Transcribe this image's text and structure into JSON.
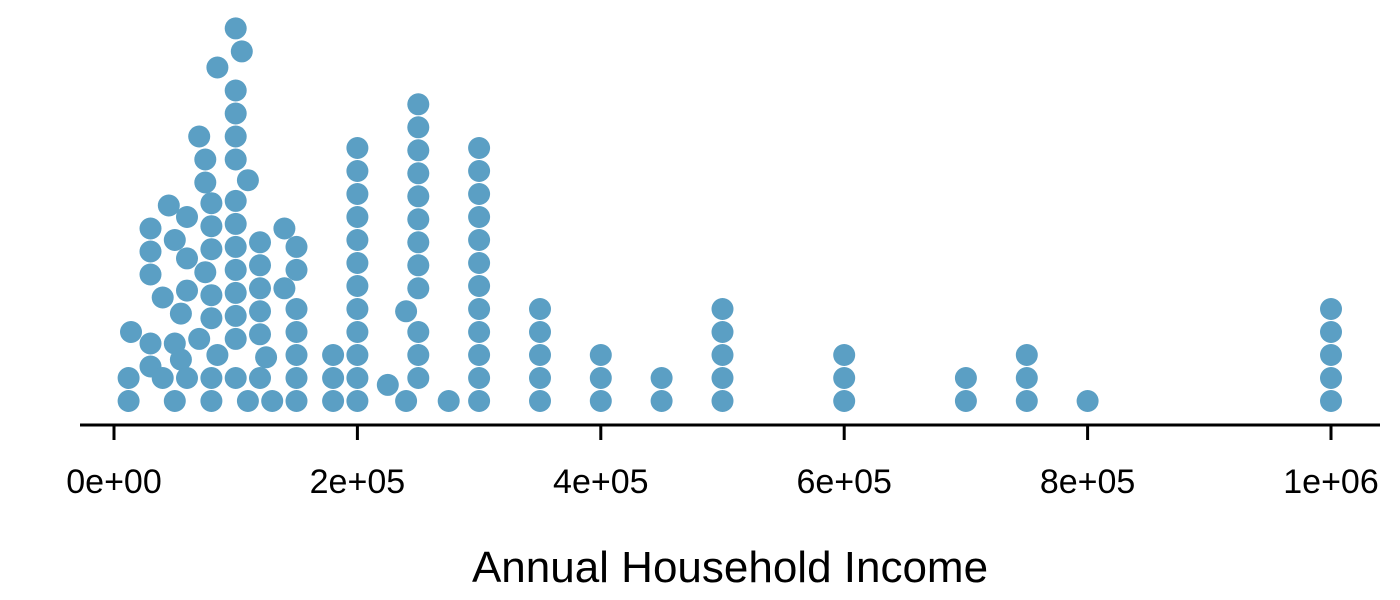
{
  "chart_data": {
    "type": "dotplot",
    "title": "",
    "xlabel": "Annual Household Income",
    "ylabel": "",
    "xlim": [
      -10000,
      1040000
    ],
    "ticks": [
      {
        "value": 0,
        "label": "0e+00"
      },
      {
        "value": 200000,
        "label": "2e+05"
      },
      {
        "value": 400000,
        "label": "4e+05"
      },
      {
        "value": 600000,
        "label": "6e+05"
      },
      {
        "value": 800000,
        "label": "8e+05"
      },
      {
        "value": 1000000,
        "label": "1e+06"
      }
    ],
    "grid": false,
    "legend": "none",
    "color": "#5b9fc4",
    "points": [
      {
        "x": 12000,
        "level": 0
      },
      {
        "x": 12000,
        "level": 1
      },
      {
        "x": 14000,
        "level": 3
      },
      {
        "x": 30000,
        "level": 1.5
      },
      {
        "x": 30000,
        "level": 2.5
      },
      {
        "x": 30000,
        "level": 5.5
      },
      {
        "x": 30000,
        "level": 6.5
      },
      {
        "x": 30000,
        "level": 7.5
      },
      {
        "x": 40000,
        "level": 1
      },
      {
        "x": 40000,
        "level": 4.5
      },
      {
        "x": 45000,
        "level": 8.5
      },
      {
        "x": 50000,
        "level": 0
      },
      {
        "x": 50000,
        "level": 2.5
      },
      {
        "x": 50000,
        "level": 7
      },
      {
        "x": 55000,
        "level": 1.8
      },
      {
        "x": 55000,
        "level": 3.8
      },
      {
        "x": 60000,
        "level": 1
      },
      {
        "x": 60000,
        "level": 4.8
      },
      {
        "x": 60000,
        "level": 6.2
      },
      {
        "x": 60000,
        "level": 8
      },
      {
        "x": 70000,
        "level": 2.7
      },
      {
        "x": 70000,
        "level": 11.5
      },
      {
        "x": 75000,
        "level": 5.6
      },
      {
        "x": 75000,
        "level": 9.5
      },
      {
        "x": 75000,
        "level": 10.5
      },
      {
        "x": 80000,
        "level": 0
      },
      {
        "x": 80000,
        "level": 1
      },
      {
        "x": 80000,
        "level": 3.6
      },
      {
        "x": 80000,
        "level": 4.6
      },
      {
        "x": 80000,
        "level": 6.6
      },
      {
        "x": 80000,
        "level": 7.6
      },
      {
        "x": 80000,
        "level": 8.6
      },
      {
        "x": 85000,
        "level": 2
      },
      {
        "x": 85000,
        "level": 14.5
      },
      {
        "x": 100000,
        "level": 1
      },
      {
        "x": 100000,
        "level": 2.7
      },
      {
        "x": 100000,
        "level": 3.7
      },
      {
        "x": 100000,
        "level": 4.7
      },
      {
        "x": 100000,
        "level": 5.7
      },
      {
        "x": 100000,
        "level": 6.7
      },
      {
        "x": 100000,
        "level": 7.7
      },
      {
        "x": 100000,
        "level": 8.7
      },
      {
        "x": 100000,
        "level": 10.5
      },
      {
        "x": 100000,
        "level": 11.5
      },
      {
        "x": 100000,
        "level": 12.5
      },
      {
        "x": 100000,
        "level": 13.5
      },
      {
        "x": 100000,
        "level": 16.2
      },
      {
        "x": 105000,
        "level": 15.2
      },
      {
        "x": 110000,
        "level": 0
      },
      {
        "x": 110000,
        "level": 9.6
      },
      {
        "x": 120000,
        "level": 1
      },
      {
        "x": 120000,
        "level": 2.9
      },
      {
        "x": 120000,
        "level": 3.9
      },
      {
        "x": 120000,
        "level": 4.9
      },
      {
        "x": 120000,
        "level": 5.9
      },
      {
        "x": 120000,
        "level": 6.9
      },
      {
        "x": 125000,
        "level": 1.9
      },
      {
        "x": 130000,
        "level": 0
      },
      {
        "x": 140000,
        "level": 4.9
      },
      {
        "x": 140000,
        "level": 7.5
      },
      {
        "x": 150000,
        "level": 0
      },
      {
        "x": 150000,
        "level": 1
      },
      {
        "x": 150000,
        "level": 2
      },
      {
        "x": 150000,
        "level": 3
      },
      {
        "x": 150000,
        "level": 4
      },
      {
        "x": 150000,
        "level": 5.7
      },
      {
        "x": 150000,
        "level": 6.7
      },
      {
        "x": 180000,
        "level": 0
      },
      {
        "x": 180000,
        "level": 1
      },
      {
        "x": 180000,
        "level": 2
      },
      {
        "x": 200000,
        "level": 0
      },
      {
        "x": 200000,
        "level": 1
      },
      {
        "x": 200000,
        "level": 2
      },
      {
        "x": 200000,
        "level": 3
      },
      {
        "x": 200000,
        "level": 4
      },
      {
        "x": 200000,
        "level": 5
      },
      {
        "x": 200000,
        "level": 6
      },
      {
        "x": 200000,
        "level": 7
      },
      {
        "x": 200000,
        "level": 8
      },
      {
        "x": 200000,
        "level": 9
      },
      {
        "x": 200000,
        "level": 10
      },
      {
        "x": 200000,
        "level": 11
      },
      {
        "x": 225000,
        "level": 0.7
      },
      {
        "x": 240000,
        "level": 0
      },
      {
        "x": 240000,
        "level": 3.9
      },
      {
        "x": 250000,
        "level": 1
      },
      {
        "x": 250000,
        "level": 2
      },
      {
        "x": 250000,
        "level": 3
      },
      {
        "x": 250000,
        "level": 4.9
      },
      {
        "x": 250000,
        "level": 5.9
      },
      {
        "x": 250000,
        "level": 6.9
      },
      {
        "x": 250000,
        "level": 7.9
      },
      {
        "x": 250000,
        "level": 8.9
      },
      {
        "x": 250000,
        "level": 9.9
      },
      {
        "x": 250000,
        "level": 10.9
      },
      {
        "x": 250000,
        "level": 11.9
      },
      {
        "x": 250000,
        "level": 12.9
      },
      {
        "x": 275000,
        "level": 0
      },
      {
        "x": 300000,
        "level": 0
      },
      {
        "x": 300000,
        "level": 1
      },
      {
        "x": 300000,
        "level": 2
      },
      {
        "x": 300000,
        "level": 3
      },
      {
        "x": 300000,
        "level": 4
      },
      {
        "x": 300000,
        "level": 5
      },
      {
        "x": 300000,
        "level": 6
      },
      {
        "x": 300000,
        "level": 7
      },
      {
        "x": 300000,
        "level": 8
      },
      {
        "x": 300000,
        "level": 9
      },
      {
        "x": 300000,
        "level": 10
      },
      {
        "x": 300000,
        "level": 11
      },
      {
        "x": 350000,
        "level": 0
      },
      {
        "x": 350000,
        "level": 1
      },
      {
        "x": 350000,
        "level": 2
      },
      {
        "x": 350000,
        "level": 3
      },
      {
        "x": 350000,
        "level": 4
      },
      {
        "x": 400000,
        "level": 0
      },
      {
        "x": 400000,
        "level": 1
      },
      {
        "x": 400000,
        "level": 2
      },
      {
        "x": 450000,
        "level": 0
      },
      {
        "x": 450000,
        "level": 1
      },
      {
        "x": 500000,
        "level": 0
      },
      {
        "x": 500000,
        "level": 1
      },
      {
        "x": 500000,
        "level": 2
      },
      {
        "x": 500000,
        "level": 3
      },
      {
        "x": 500000,
        "level": 4
      },
      {
        "x": 600000,
        "level": 0
      },
      {
        "x": 600000,
        "level": 1
      },
      {
        "x": 600000,
        "level": 2
      },
      {
        "x": 700000,
        "level": 0
      },
      {
        "x": 700000,
        "level": 1
      },
      {
        "x": 750000,
        "level": 0
      },
      {
        "x": 750000,
        "level": 1
      },
      {
        "x": 750000,
        "level": 2
      },
      {
        "x": 800000,
        "level": 0
      },
      {
        "x": 1000000,
        "level": 0
      },
      {
        "x": 1000000,
        "level": 1
      },
      {
        "x": 1000000,
        "level": 2
      },
      {
        "x": 1000000,
        "level": 3
      },
      {
        "x": 1000000,
        "level": 4
      }
    ]
  }
}
